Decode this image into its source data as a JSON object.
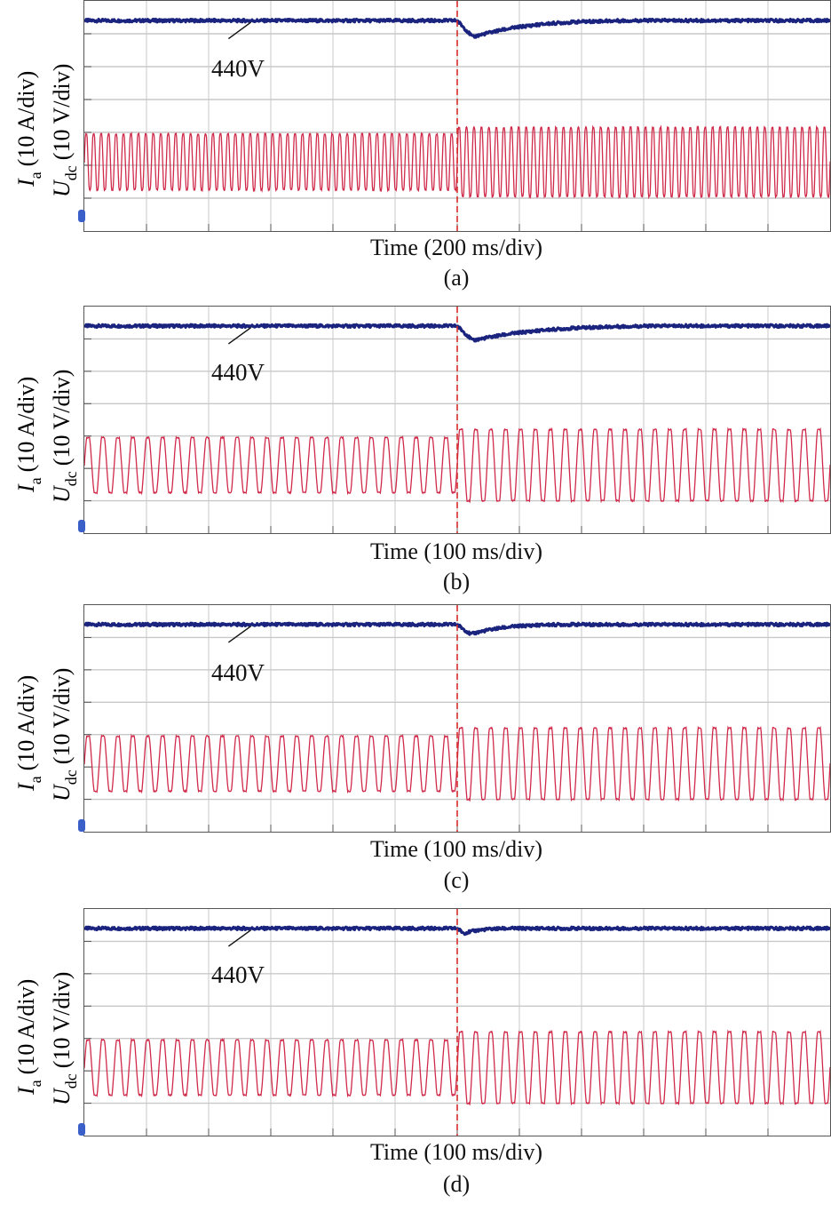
{
  "colors": {
    "voltage": "#1a237e",
    "current": "#d02a4a",
    "grid": "#c9c9c9",
    "event_line": "#d62b2b",
    "marker": "#3b5fc8"
  },
  "ylabel": {
    "ia": "I",
    "ia_sub": "a",
    "ia_unit": "(10 A/div)",
    "udc": "U",
    "udc_sub": "dc",
    "udc_unit": "(10 V/div)"
  },
  "chart_data": [
    {
      "type": "line",
      "panel_label": "(a)",
      "xlabel": "Time (200 ms/div)",
      "annotation": "440V",
      "grid": true,
      "x_divisions": 12,
      "y_divisions": 7,
      "event_time_div": 6.0,
      "series": [
        {
          "name": "Udc",
          "steady_div": 6.4,
          "dip_div": 5.9,
          "recovery_time_div": 2.0
        },
        {
          "name": "Ia",
          "center_div": 2.1,
          "amp_before_div": 0.85,
          "amp_after_div": 1.05,
          "cycles": 100
        }
      ]
    },
    {
      "type": "line",
      "panel_label": "(b)",
      "xlabel": "Time (100 ms/div)",
      "annotation": "440V",
      "grid": true,
      "x_divisions": 12,
      "y_divisions": 7,
      "event_time_div": 6.0,
      "series": [
        {
          "name": "Udc",
          "steady_div": 6.4,
          "dip_div": 5.95,
          "recovery_time_div": 2.4
        },
        {
          "name": "Ia",
          "center_div": 2.1,
          "amp_before_div": 0.85,
          "amp_after_div": 1.1,
          "cycles": 50
        }
      ]
    },
    {
      "type": "line",
      "panel_label": "(c)",
      "xlabel": "Time (100 ms/div)",
      "annotation": "440V",
      "grid": true,
      "x_divisions": 12,
      "y_divisions": 7,
      "event_time_div": 6.0,
      "series": [
        {
          "name": "Udc",
          "steady_div": 6.4,
          "dip_div": 6.1,
          "recovery_time_div": 1.2
        },
        {
          "name": "Ia",
          "center_div": 2.1,
          "amp_before_div": 0.85,
          "amp_after_div": 1.1,
          "cycles": 50
        }
      ]
    },
    {
      "type": "line",
      "panel_label": "(d)",
      "xlabel": "Time (100 ms/div)",
      "annotation": "440V",
      "grid": true,
      "x_divisions": 12,
      "y_divisions": 7,
      "event_time_div": 6.0,
      "series": [
        {
          "name": "Udc",
          "steady_div": 6.4,
          "dip_div": 6.25,
          "recovery_time_div": 0.6
        },
        {
          "name": "Ia",
          "center_div": 2.1,
          "amp_before_div": 0.85,
          "amp_after_div": 1.1,
          "cycles": 50
        }
      ]
    }
  ]
}
